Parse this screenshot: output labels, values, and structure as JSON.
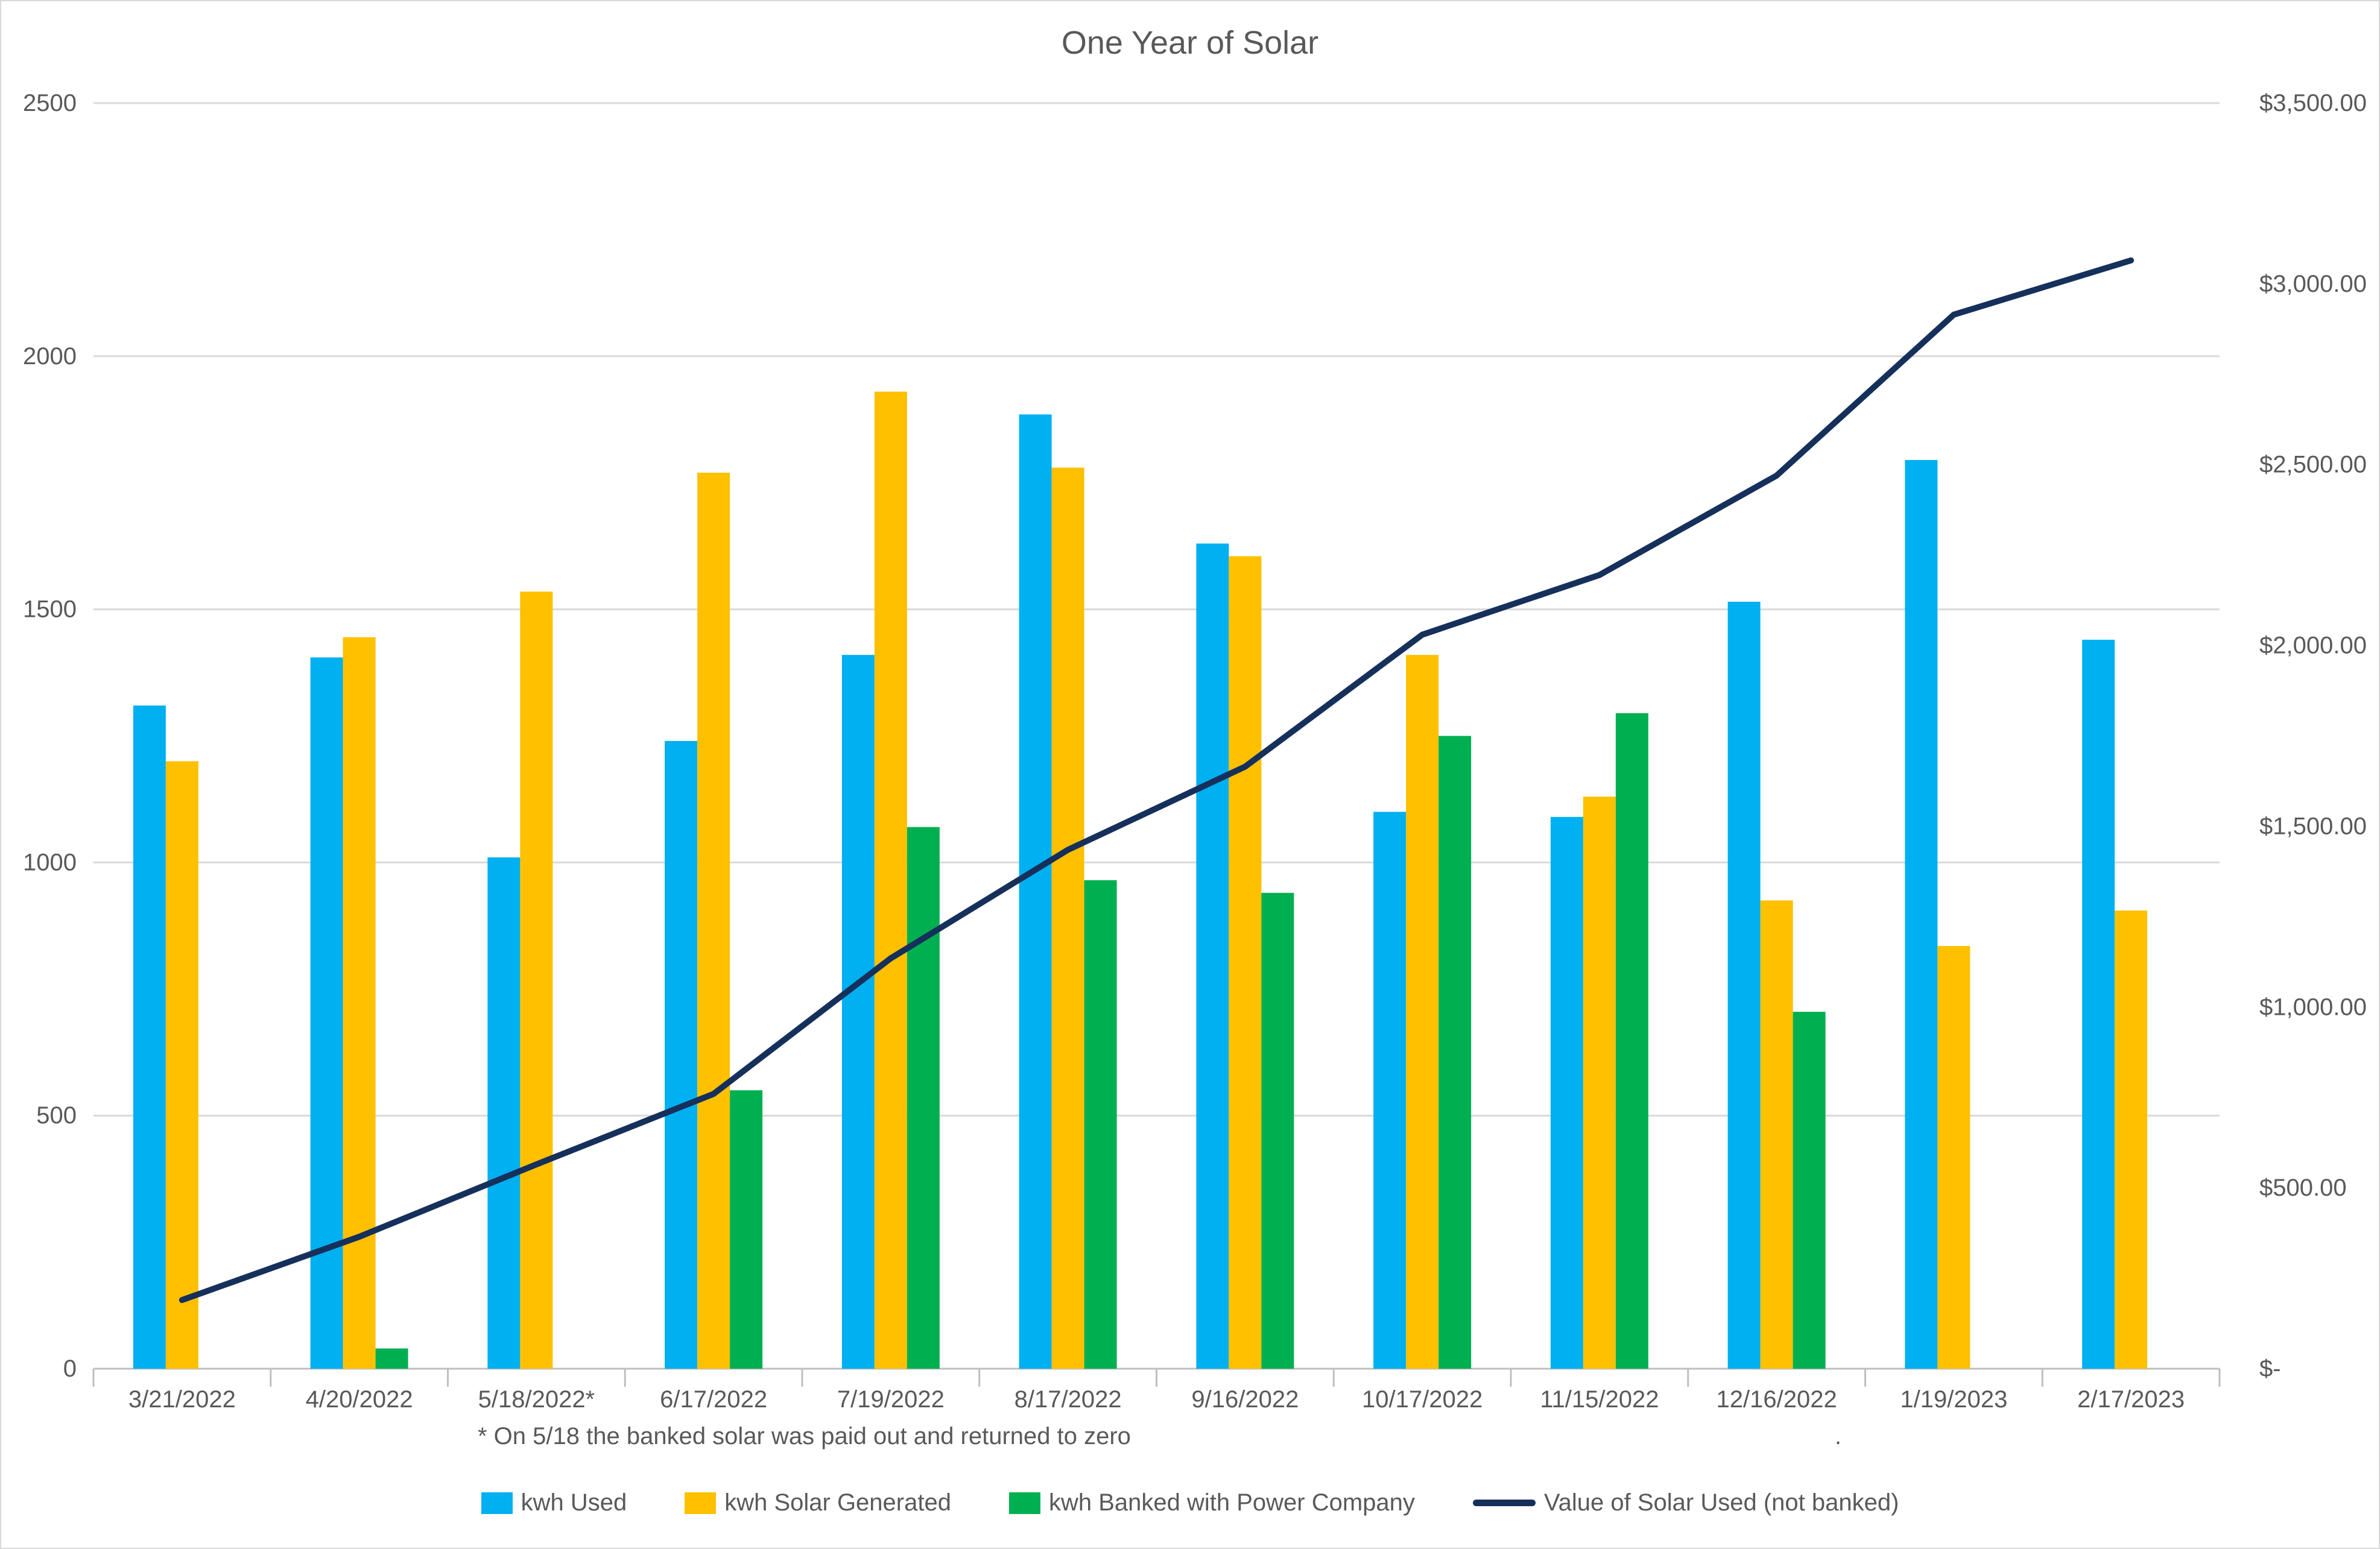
{
  "title": "One Year of Solar",
  "footnote": "* On 5/18 the banked solar was paid out and returned to zero",
  "stray_dot": ".",
  "colors": {
    "kwh_used": "#00B0F0",
    "kwh_solar_generated": "#FFC000",
    "kwh_banked": "#00B050",
    "value_line": "#16305C",
    "gridline": "#D9D9D9",
    "axis_line": "#BFBFBF",
    "text": "#595959",
    "background": "#FFFFFF"
  },
  "chart_data": {
    "type": "bar",
    "subtype": "grouped-bars-with-secondary-axis-line",
    "title": "One Year of Solar",
    "grid": true,
    "legend_position": "bottom",
    "categories": [
      "3/21/2022",
      "4/20/2022",
      "5/18/2022*",
      "6/17/2022",
      "7/19/2022",
      "8/17/2022",
      "9/16/2022",
      "10/17/2022",
      "11/15/2022",
      "12/16/2022",
      "1/19/2023",
      "2/17/2023"
    ],
    "series": [
      {
        "name": "kwh Used",
        "type": "bar",
        "axis": "left",
        "color": "#00B0F0",
        "values": [
          1310,
          1405,
          1010,
          1240,
          1410,
          1885,
          1630,
          1100,
          1090,
          1515,
          1795,
          1440
        ]
      },
      {
        "name": "kwh Solar Generated",
        "type": "bar",
        "axis": "left",
        "color": "#FFC000",
        "values": [
          1200,
          1445,
          1535,
          1770,
          1930,
          1780,
          1605,
          1410,
          1130,
          925,
          835,
          905
        ]
      },
      {
        "name": "kwh Banked with Power Company",
        "type": "bar",
        "axis": "left",
        "color": "#00B050",
        "values": [
          null,
          40,
          null,
          550,
          1070,
          965,
          940,
          1250,
          1295,
          705,
          null,
          null
        ]
      },
      {
        "name": "Value of Solar Used (not banked)",
        "type": "line",
        "axis": "right",
        "color": "#16305C",
        "values": [
          190,
          365,
          565,
          760,
          1135,
          1435,
          1665,
          2030,
          2195,
          2470,
          2915,
          3065
        ]
      }
    ],
    "left_axis": {
      "min": 0,
      "max": 2500,
      "step": 500,
      "ticks": [
        "2500",
        "2000",
        "1500",
        "1000",
        "500",
        "0"
      ]
    },
    "right_axis": {
      "min": 0,
      "max": 3500,
      "step": 500,
      "ticks": [
        "$3,500.00",
        "$3,000.00",
        "$2,500.00",
        "$2,000.00",
        "$1,500.00",
        "$1,000.00",
        "$500.00",
        "$-"
      ]
    }
  }
}
